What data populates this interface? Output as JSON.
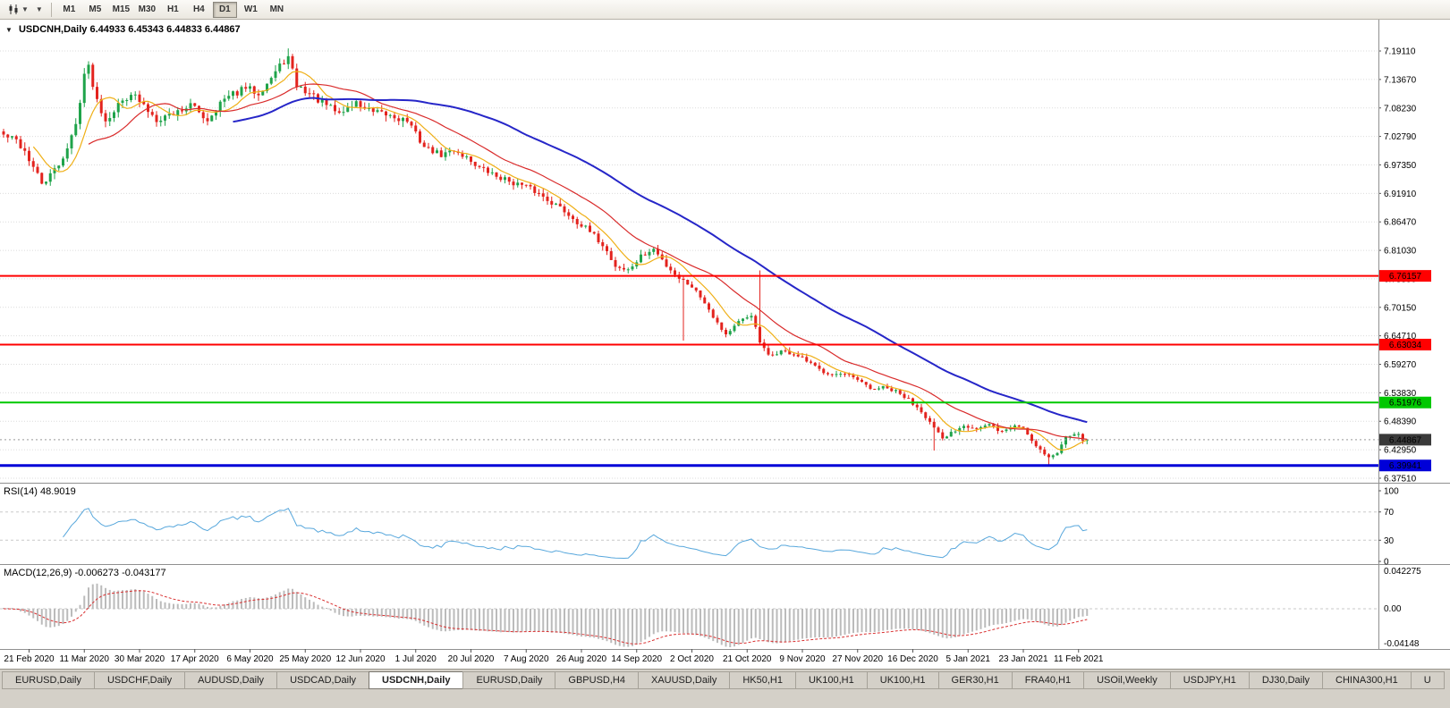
{
  "toolbar": {
    "timeframes": [
      "M1",
      "M5",
      "M15",
      "M30",
      "H1",
      "H4",
      "D1",
      "W1",
      "MN"
    ],
    "active_timeframe": "D1",
    "chart_type_icon": "candlestick-icon"
  },
  "chart": {
    "collapse_arrow": "▼",
    "title_symbol": "USDCNH,Daily",
    "title_ohlc": "6.44933 6.45343 6.44833 6.44867"
  },
  "chart_data": {
    "type": "candlestick",
    "symbol": "USDCNH",
    "timeframe": "Daily",
    "ohlc_display": {
      "open": "6.44933",
      "high": "6.45343",
      "low": "6.44833",
      "close": "6.44867"
    },
    "num_candles": 256,
    "last_close": 6.44867,
    "price_axis": {
      "labels": [
        "7.19110",
        "7.13670",
        "7.08230",
        "7.02790",
        "6.97350",
        "6.91910",
        "6.86470",
        "6.81030",
        "6.75590",
        "6.70150",
        "6.64710",
        "6.59270",
        "6.53830",
        "6.48390",
        "6.42950",
        "6.37510"
      ],
      "top": 7.1911,
      "step": 0.0544,
      "pane_max": 7.2509,
      "pane_min": 6.3665
    },
    "x_axis": {
      "labels": [
        "21 Feb 2020",
        "11 Mar 2020",
        "30 Mar 2020",
        "17 Apr 2020",
        "6 May 2020",
        "25 May 2020",
        "12 Jun 2020",
        "1 Jul 2020",
        "20 Jul 2020",
        "7 Aug 2020",
        "26 Aug 2020",
        "14 Sep 2020",
        "2 Oct 2020",
        "21 Oct 2020",
        "9 Nov 2020",
        "27 Nov 2020",
        "16 Dec 2020",
        "5 Jan 2021",
        "23 Jan 2021",
        "11 Feb 2021"
      ],
      "first_index": 6,
      "every": 13
    },
    "close_anchors": [
      [
        0,
        7.03
      ],
      [
        3,
        7.02
      ],
      [
        5,
        7.0
      ],
      [
        7,
        6.968
      ],
      [
        9,
        6.938
      ],
      [
        11,
        6.952
      ],
      [
        13,
        6.975
      ],
      [
        15,
        7.005
      ],
      [
        17,
        7.05
      ],
      [
        19,
        7.148
      ],
      [
        20,
        7.16
      ],
      [
        22,
        7.098
      ],
      [
        24,
        7.06
      ],
      [
        27,
        7.088
      ],
      [
        30,
        7.112
      ],
      [
        33,
        7.085
      ],
      [
        36,
        7.062
      ],
      [
        40,
        7.072
      ],
      [
        44,
        7.088
      ],
      [
        48,
        7.06
      ],
      [
        51,
        7.092
      ],
      [
        54,
        7.108
      ],
      [
        57,
        7.12
      ],
      [
        60,
        7.112
      ],
      [
        63,
        7.14
      ],
      [
        66,
        7.172
      ],
      [
        67,
        7.178
      ],
      [
        69,
        7.125
      ],
      [
        72,
        7.11
      ],
      [
        75,
        7.092
      ],
      [
        79,
        7.072
      ],
      [
        83,
        7.092
      ],
      [
        87,
        7.072
      ],
      [
        91,
        7.068
      ],
      [
        95,
        7.058
      ],
      [
        99,
        7.008
      ],
      [
        103,
        6.992
      ],
      [
        106,
        7.002
      ],
      [
        109,
        6.988
      ],
      [
        112,
        6.968
      ],
      [
        116,
        6.952
      ],
      [
        120,
        6.94
      ],
      [
        124,
        6.928
      ],
      [
        128,
        6.908
      ],
      [
        131,
        6.892
      ],
      [
        134,
        6.872
      ],
      [
        137,
        6.852
      ],
      [
        141,
        6.822
      ],
      [
        144,
        6.78
      ],
      [
        147,
        6.772
      ],
      [
        150,
        6.798
      ],
      [
        153,
        6.812
      ],
      [
        156,
        6.782
      ],
      [
        159,
        6.758
      ],
      [
        162,
        6.742
      ],
      [
        165,
        6.712
      ],
      [
        168,
        6.672
      ],
      [
        170,
        6.65
      ],
      [
        173,
        6.672
      ],
      [
        176,
        6.688
      ],
      [
        178,
        6.634
      ],
      [
        180,
        6.608
      ],
      [
        183,
        6.618
      ],
      [
        186,
        6.612
      ],
      [
        189,
        6.598
      ],
      [
        192,
        6.582
      ],
      [
        195,
        6.575
      ],
      [
        198,
        6.572
      ],
      [
        201,
        6.562
      ],
      [
        204,
        6.545
      ],
      [
        207,
        6.548
      ],
      [
        210,
        6.54
      ],
      [
        213,
        6.525
      ],
      [
        216,
        6.505
      ],
      [
        219,
        6.47
      ],
      [
        221,
        6.448
      ],
      [
        223,
        6.462
      ],
      [
        226,
        6.478
      ],
      [
        229,
        6.47
      ],
      [
        232,
        6.476
      ],
      [
        235,
        6.464
      ],
      [
        238,
        6.476
      ],
      [
        240,
        6.472
      ],
      [
        242,
        6.448
      ],
      [
        244,
        6.43
      ],
      [
        246,
        6.415
      ],
      [
        248,
        6.422
      ],
      [
        250,
        6.458
      ],
      [
        252,
        6.462
      ],
      [
        254,
        6.45
      ],
      [
        255,
        6.44867
      ]
    ],
    "spikes": [
      {
        "i": 20,
        "high": 7.168
      },
      {
        "i": 67,
        "high": 7.196
      },
      {
        "i": 160,
        "low": 6.638
      },
      {
        "i": 178,
        "high": 6.772
      },
      {
        "i": 219,
        "low": 6.428
      },
      {
        "i": 246,
        "low": 6.398
      }
    ],
    "moving_averages": [
      {
        "period": 8,
        "color_key": "ma_fast",
        "width": 1.2
      },
      {
        "period": 21,
        "color_key": "ma_mid",
        "width": 1.2
      },
      {
        "period": 55,
        "color_key": "ma_slow",
        "width": 2
      }
    ],
    "hlines": [
      {
        "price": 6.76157,
        "label": "6.76157",
        "color_key": "hline_red",
        "width": 2,
        "text": "#FFFFFF"
      },
      {
        "price": 6.63034,
        "label": "6.63034",
        "color_key": "hline_red",
        "width": 2,
        "text": "#FFFFFF"
      },
      {
        "price": 6.51976,
        "label": "6.51976",
        "color_key": "hline_green",
        "width": 2,
        "text": "#000000"
      },
      {
        "price": 6.39941,
        "label": "6.39941",
        "color_key": "hline_blue",
        "width": 3,
        "text": "#FFFFFF"
      }
    ],
    "current_price": {
      "value": 6.44867,
      "label": "6.44867"
    },
    "rsi": {
      "label": "RSI(14) 48.9019",
      "period": 14,
      "last": "48.9019",
      "axis_labels": [
        "100",
        "70",
        "30",
        "0"
      ],
      "levels": [
        70,
        30
      ]
    },
    "macd": {
      "label": "MACD(12,26,9) -0.006273 -0.043177",
      "fast": 12,
      "slow": 26,
      "signal_period": 9,
      "axis_labels": [
        "0.042275",
        "0.00",
        "-0.04148"
      ]
    },
    "colors": {
      "up": "#1FA34A",
      "down": "#E3231E",
      "ma_fast": "#EFAF16",
      "ma_mid": "#D92B2B",
      "ma_slow": "#2626C8",
      "rsi": "#57A7DC",
      "macd_hist": "#BBBBBB",
      "macd_signal": "#D93030",
      "hline_red": "#FF0000",
      "hline_green": "#00C800",
      "hline_blue": "#0000D8",
      "current_badge": "#3A3A3A",
      "grid": "#DBDBDB"
    }
  },
  "tabbar": {
    "active_index": 4,
    "tabs": [
      "EURUSD,Daily",
      "USDCHF,Daily",
      "AUDUSD,Daily",
      "USDCAD,Daily",
      "USDCNH,Daily",
      "EURUSD,Daily",
      "GBPUSD,H4",
      "XAUUSD,Daily",
      "HK50,H1",
      "UK100,H1",
      "UK100,H1",
      "GER30,H1",
      "FRA40,H1",
      "USOil,Weekly",
      "USDJPY,H1",
      "DJ30,Daily",
      "CHINA300,H1",
      "U"
    ]
  }
}
